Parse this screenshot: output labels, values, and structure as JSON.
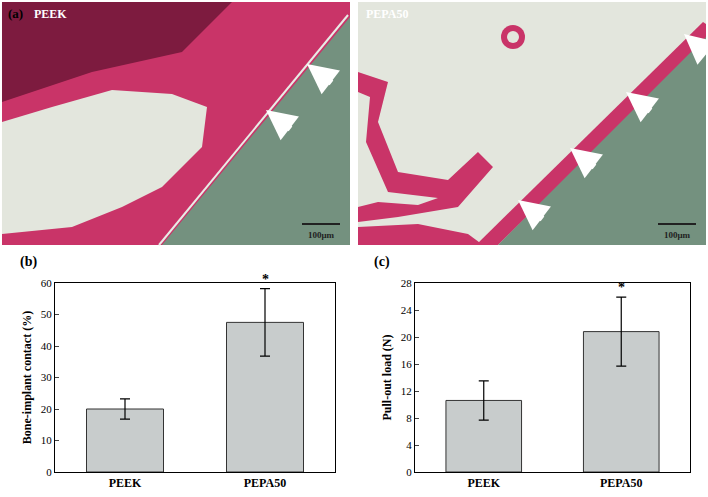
{
  "panels": {
    "a": {
      "label": "(a)",
      "images": [
        {
          "label": "PEEK",
          "scale_bar": "100μm",
          "arrows": 2
        },
        {
          "label": "PEPA50",
          "scale_bar": "100μm",
          "arrows": 4
        }
      ]
    }
  },
  "chart_data": [
    {
      "label": "(b)",
      "type": "bar",
      "categories": [
        "PEEK",
        "PEPA50"
      ],
      "values": [
        20,
        47.5
      ],
      "errors": [
        3.2,
        10.7
      ],
      "color": "#c8cccc",
      "y_label": "Bone-implant contact (%)",
      "ylim": [
        0,
        60
      ],
      "yticks": [
        0,
        10,
        20,
        30,
        40,
        50,
        60
      ],
      "grid": false,
      "annotations": [
        {
          "category": "PEPA50",
          "text": "*"
        }
      ]
    },
    {
      "label": "(c)",
      "type": "bar",
      "categories": [
        "PEEK",
        "PEPA50"
      ],
      "values": [
        10.6,
        20.8
      ],
      "errors": [
        2.9,
        5.1
      ],
      "color": "#c8cccc",
      "y_label": "Pull-out load (N)",
      "ylim": [
        0,
        28
      ],
      "yticks": [
        0,
        4,
        8,
        12,
        16,
        20,
        24,
        28
      ],
      "grid": false,
      "annotations": [
        {
          "category": "PEPA50",
          "text": "*"
        }
      ]
    }
  ]
}
